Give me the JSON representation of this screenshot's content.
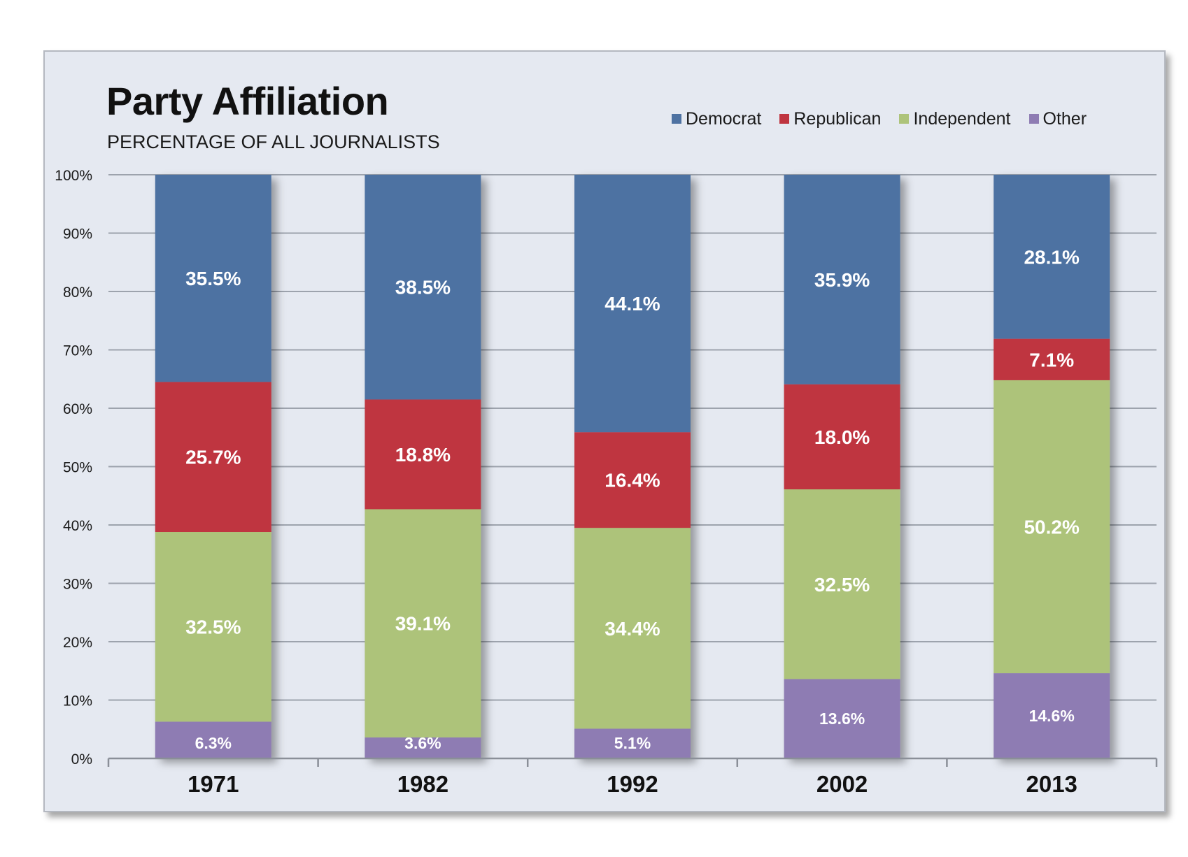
{
  "chart_data": {
    "type": "bar",
    "stacked": true,
    "title": "Party Affiliation",
    "subtitle": "PERCENTAGE OF ALL JOURNALISTS",
    "categories": [
      "1971",
      "1982",
      "1992",
      "2002",
      "2013"
    ],
    "series": [
      {
        "name": "Other",
        "color": "#8e7cb3",
        "values": [
          6.3,
          3.6,
          5.1,
          13.6,
          14.6
        ]
      },
      {
        "name": "Independent",
        "color": "#adc37a",
        "values": [
          32.5,
          39.1,
          34.4,
          32.5,
          50.2
        ]
      },
      {
        "name": "Republican",
        "color": "#bf3540",
        "values": [
          25.7,
          18.8,
          16.4,
          18.0,
          7.1
        ]
      },
      {
        "name": "Democrat",
        "color": "#4e72a2",
        "values": [
          35.5,
          38.5,
          44.1,
          35.9,
          28.1
        ]
      }
    ],
    "legend_order": [
      "Democrat",
      "Republican",
      "Independent",
      "Other"
    ],
    "data_labels": {
      "Democrat": [
        "35.5%",
        "38.5%",
        "44.1%",
        "35.9%",
        "28.1%"
      ],
      "Republican": [
        "25.7%",
        "18.8%",
        "16.4%",
        "18.0%",
        "7.1%"
      ],
      "Independent": [
        "32.5%",
        "39.1%",
        "34.4%",
        "32.5%",
        "50.2%"
      ],
      "Other": [
        "6.3%",
        "3.6%",
        "5.1%",
        "13.6%",
        "14.6%"
      ]
    },
    "yticks": [
      "0%",
      "10%",
      "20%",
      "30%",
      "40%",
      "50%",
      "60%",
      "70%",
      "80%",
      "90%",
      "100%"
    ],
    "ylim": [
      0,
      100
    ],
    "grid": true,
    "legend_position": "top-right",
    "background_color": "#e5e9f1"
  }
}
